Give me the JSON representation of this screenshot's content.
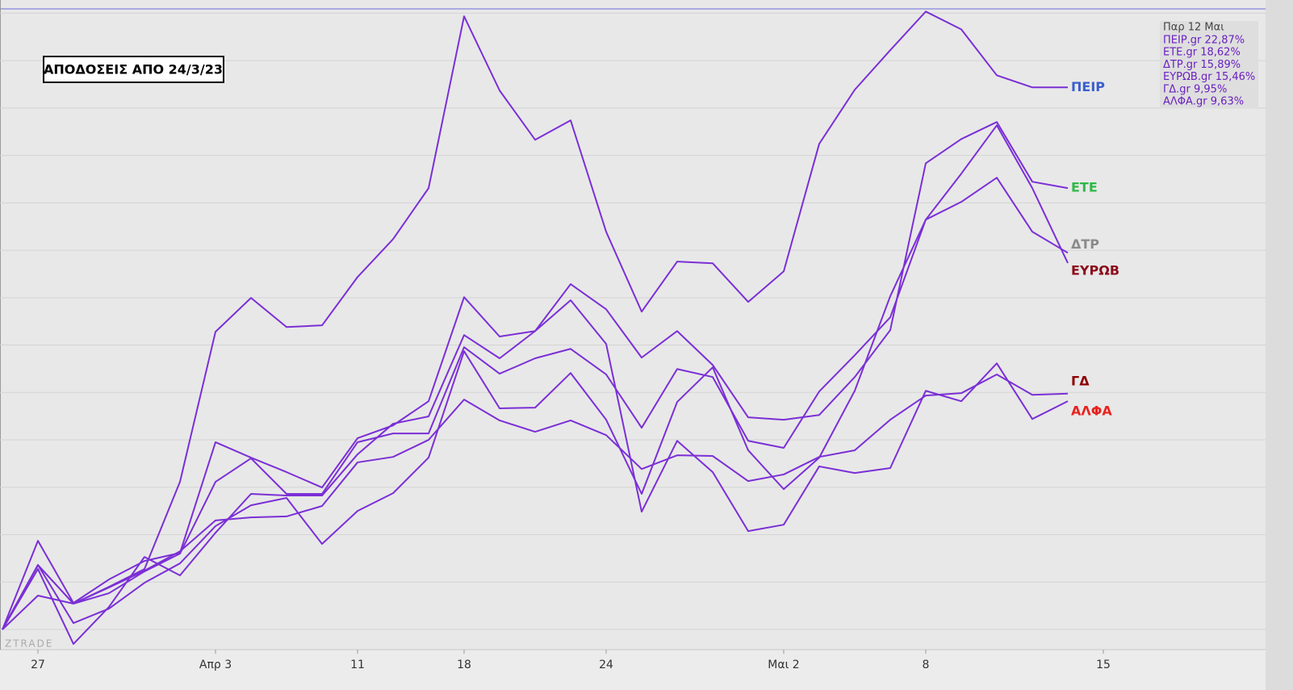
{
  "chart_data": {
    "type": "line",
    "title": "ΑΠΟΔΟΣΕΙΣ ΑΠΟ 24/3/23",
    "watermark": "ZTRADE",
    "legend_title": "Παρ 12 Μαι",
    "legend_entries": [
      "ΠΕΙΡ.gr 22,87%",
      "ΕΤΕ.gr 18,62%",
      "ΔΤΡ.gr 15,89%",
      "ΕΥΡΩΒ.gr 15,46%",
      "ΓΔ.gr 9,95%",
      "ΑΛΦΑ.gr 9,63%"
    ],
    "categories": [
      null,
      "27",
      null,
      null,
      null,
      null,
      "Απρ 3",
      null,
      null,
      null,
      "11",
      null,
      null,
      "18",
      null,
      null,
      null,
      "24",
      null,
      null,
      null,
      null,
      "Μαι 2",
      null,
      null,
      null,
      "8",
      null,
      null,
      null,
      null,
      "15",
      null,
      null,
      null,
      null
    ],
    "ylim": [
      -0.8,
      26.2
    ],
    "yticks": [
      0,
      2,
      4,
      6,
      8,
      10,
      12,
      14,
      16,
      18,
      20,
      22,
      24,
      26
    ],
    "grid": true,
    "series": [
      {
        "name": "ΠΕΙΡ",
        "color": "#7b2fd6",
        "label_color": "#3a5fcd",
        "values": [
          0,
          2.72,
          1.09,
          1.8,
          2.55,
          6.23,
          12.56,
          13.99,
          12.76,
          12.83,
          14.87,
          16.47,
          18.62,
          25.87,
          22.74,
          20.66,
          21.48,
          16.78,
          13.41,
          15.52,
          15.45,
          13.82,
          15.11,
          20.49,
          22.77,
          24.44,
          26.07,
          25.32,
          23.38,
          22.87,
          22.87,
          null,
          null,
          null,
          null,
          null
        ]
      },
      {
        "name": "ΕΤΕ",
        "color": "#7b2fd6",
        "label_color": "#2fb84a",
        "values": [
          0,
          3.74,
          1.12,
          2.11,
          2.89,
          3.23,
          7.9,
          7.25,
          6.64,
          5.99,
          8.07,
          8.61,
          9.63,
          14.02,
          12.36,
          12.59,
          14.57,
          13.51,
          11.47,
          12.59,
          11.16,
          8.95,
          8.85,
          9.05,
          10.65,
          12.63,
          19.67,
          20.69,
          21.41,
          18.89,
          18.62,
          null,
          null,
          null,
          null,
          null
        ]
      },
      {
        "name": "ΔΤΡ",
        "color": "#7b2fd6",
        "label_color": "#8a8a8a",
        "values": [
          0,
          2.72,
          1.09,
          1.53,
          2.45,
          3.2,
          6.23,
          7.22,
          5.72,
          5.72,
          7.9,
          8.27,
          8.27,
          11.91,
          10.79,
          11.44,
          11.84,
          10.76,
          8.51,
          10.99,
          10.65,
          7.96,
          7.66,
          10.04,
          11.57,
          13.17,
          17.29,
          18.04,
          19.06,
          16.78,
          15.89,
          null,
          null,
          null,
          null,
          null
        ]
      },
      {
        "name": "ΕΥΡΩΒ",
        "color": "#7b2fd6",
        "label_color": "#8b0a1a",
        "values": [
          0,
          2.72,
          0.27,
          0.88,
          1.97,
          2.79,
          4.36,
          5.24,
          5.55,
          3.61,
          5.0,
          5.75,
          7.25,
          11.74,
          9.33,
          9.36,
          10.82,
          8.85,
          5.72,
          9.6,
          11.06,
          7.56,
          5.92,
          7.25,
          10.07,
          14.06,
          17.29,
          19.23,
          21.27,
          18.62,
          15.46,
          null,
          null,
          null,
          null,
          null
        ]
      },
      {
        "name": "ΓΔ",
        "color": "#7b2fd6",
        "label_color": "#8b0000",
        "values": [
          0,
          1.43,
          1.09,
          1.77,
          2.48,
          3.3,
          4.6,
          4.73,
          4.77,
          5.21,
          7.05,
          7.28,
          8.0,
          9.7,
          8.82,
          8.34,
          8.82,
          8.2,
          6.77,
          7.35,
          7.32,
          6.26,
          6.54,
          7.28,
          7.56,
          8.85,
          9.87,
          9.97,
          10.76,
          9.9,
          9.95,
          null,
          null,
          null,
          null,
          null
        ]
      },
      {
        "name": "ΑΛΦΑ",
        "color": "#7b2fd6",
        "label_color": "#e8231f",
        "values": [
          0,
          2.55,
          -0.61,
          0.95,
          3.06,
          2.28,
          4.08,
          5.72,
          5.65,
          5.65,
          7.39,
          8.68,
          8.99,
          12.42,
          11.44,
          12.59,
          13.89,
          12.05,
          4.97,
          7.96,
          6.64,
          4.15,
          4.42,
          6.88,
          6.6,
          6.81,
          10.07,
          9.63,
          11.23,
          8.88,
          9.63,
          null,
          null,
          null,
          null,
          null
        ]
      }
    ]
  }
}
